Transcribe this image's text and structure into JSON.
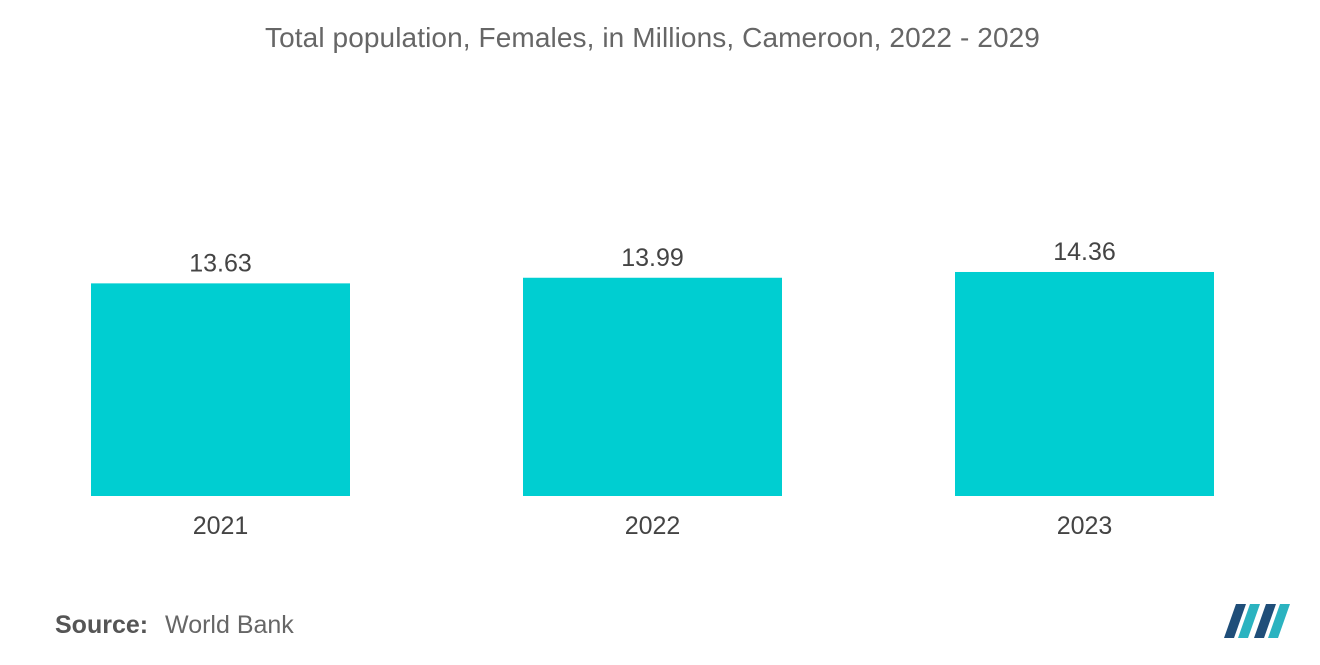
{
  "title": "Total population, Females, in Millions, Cameroon, 2022 - 2029",
  "source": {
    "label": "Source:",
    "value": "World Bank"
  },
  "colors": {
    "bar": "#00ced1",
    "text": "#444444",
    "logo_dark": "#1f4e79",
    "logo_light": "#2bb3c0"
  },
  "logo": {
    "icon": "mordor-intelligence-logo-icon"
  },
  "chart_data": {
    "type": "bar",
    "categories": [
      "2021",
      "2022",
      "2023"
    ],
    "values": [
      13.63,
      13.99,
      14.36
    ],
    "value_labels": [
      "13.63",
      "13.99",
      "14.36"
    ],
    "title": "Total population, Females, in Millions, Cameroon, 2022 - 2029",
    "xlabel": "",
    "ylabel": "",
    "grid": false,
    "legend": "none"
  }
}
